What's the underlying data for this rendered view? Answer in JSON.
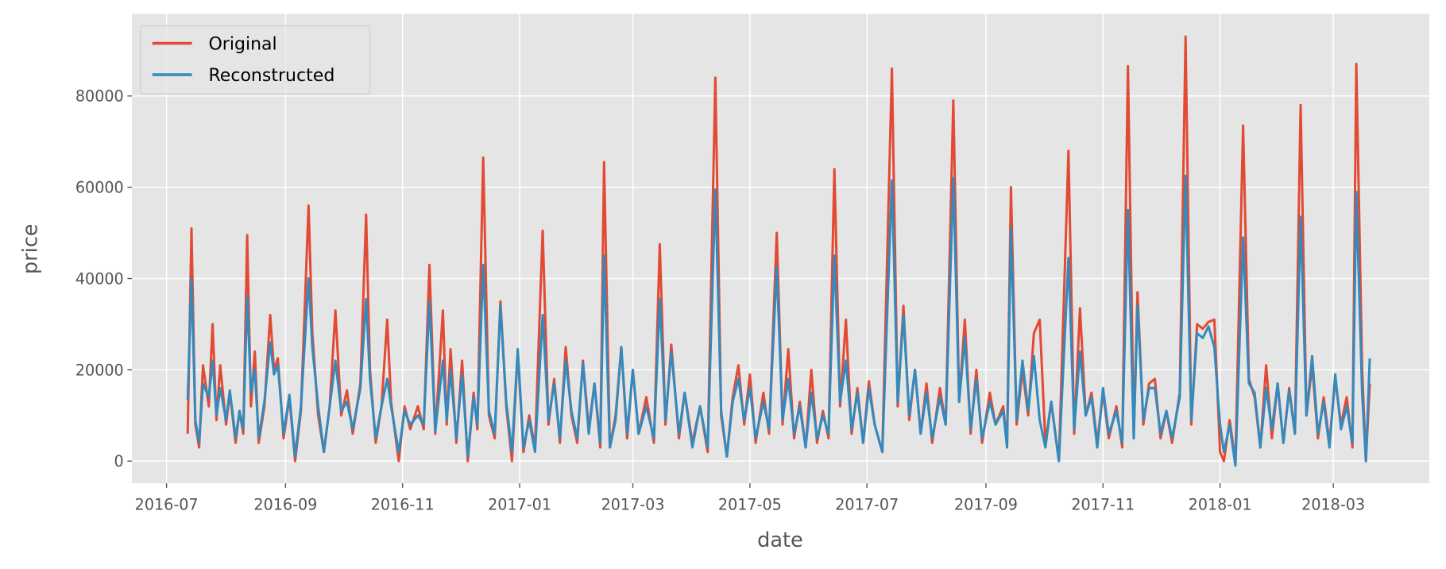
{
  "chart_data": {
    "type": "line",
    "title": "",
    "xlabel": "date",
    "ylabel": "price",
    "xlim": [
      "2016-06-13",
      "2018-04-20"
    ],
    "ylim": [
      -4850,
      98000
    ],
    "grid": true,
    "legend_position": "top-left",
    "x_ticks": [
      "2016-07",
      "2016-09",
      "2016-11",
      "2017-01",
      "2017-03",
      "2017-05",
      "2017-07",
      "2017-09",
      "2017-11",
      "2018-01",
      "2018-03"
    ],
    "y_ticks": [
      0,
      20000,
      40000,
      60000,
      80000
    ],
    "y_tick_labels": [
      "0",
      "20000",
      "40000",
      "60000",
      "80000"
    ],
    "x": [
      "2016-07-12",
      "2016-07-14",
      "2016-07-16",
      "2016-07-18",
      "2016-07-20",
      "2016-07-23",
      "2016-07-25",
      "2016-07-27",
      "2016-07-29",
      "2016-08-01",
      "2016-08-03",
      "2016-08-06",
      "2016-08-08",
      "2016-08-10",
      "2016-08-12",
      "2016-08-14",
      "2016-08-16",
      "2016-08-18",
      "2016-08-21",
      "2016-08-24",
      "2016-08-26",
      "2016-08-28",
      "2016-08-31",
      "2016-09-03",
      "2016-09-06",
      "2016-09-09",
      "2016-09-13",
      "2016-09-15",
      "2016-09-18",
      "2016-09-21",
      "2016-09-24",
      "2016-09-27",
      "2016-09-30",
      "2016-10-03",
      "2016-10-06",
      "2016-10-10",
      "2016-10-13",
      "2016-10-15",
      "2016-10-18",
      "2016-10-21",
      "2016-10-24",
      "2016-10-26",
      "2016-10-30",
      "2016-11-02",
      "2016-11-05",
      "2016-11-09",
      "2016-11-12",
      "2016-11-15",
      "2016-11-18",
      "2016-11-22",
      "2016-11-24",
      "2016-11-26",
      "2016-11-29",
      "2016-12-02",
      "2016-12-05",
      "2016-12-08",
      "2016-12-10",
      "2016-12-13",
      "2016-12-16",
      "2016-12-19",
      "2016-12-22",
      "2016-12-25",
      "2016-12-28",
      "2016-12-31",
      "2017-01-03",
      "2017-01-06",
      "2017-01-09",
      "2017-01-13",
      "2017-01-16",
      "2017-01-19",
      "2017-01-22",
      "2017-01-25",
      "2017-01-28",
      "2017-01-31",
      "2017-02-03",
      "2017-02-06",
      "2017-02-09",
      "2017-02-12",
      "2017-02-14",
      "2017-02-17",
      "2017-02-20",
      "2017-02-23",
      "2017-02-26",
      "2017-03-01",
      "2017-03-04",
      "2017-03-08",
      "2017-03-12",
      "2017-03-15",
      "2017-03-18",
      "2017-03-21",
      "2017-03-25",
      "2017-03-28",
      "2017-04-01",
      "2017-04-05",
      "2017-04-09",
      "2017-04-13",
      "2017-04-16",
      "2017-04-19",
      "2017-04-22",
      "2017-04-25",
      "2017-04-28",
      "2017-05-01",
      "2017-05-04",
      "2017-05-08",
      "2017-05-11",
      "2017-05-15",
      "2017-05-18",
      "2017-05-21",
      "2017-05-24",
      "2017-05-27",
      "2017-05-30",
      "2017-06-02",
      "2017-06-05",
      "2017-06-08",
      "2017-06-11",
      "2017-06-14",
      "2017-06-17",
      "2017-06-20",
      "2017-06-23",
      "2017-06-26",
      "2017-06-29",
      "2017-07-02",
      "2017-07-05",
      "2017-07-09",
      "2017-07-14",
      "2017-07-17",
      "2017-07-20",
      "2017-07-23",
      "2017-07-26",
      "2017-07-29",
      "2017-08-01",
      "2017-08-04",
      "2017-08-08",
      "2017-08-11",
      "2017-08-15",
      "2017-08-18",
      "2017-08-21",
      "2017-08-24",
      "2017-08-27",
      "2017-08-30",
      "2017-09-03",
      "2017-09-06",
      "2017-09-10",
      "2017-09-12",
      "2017-09-14",
      "2017-09-17",
      "2017-09-20",
      "2017-09-23",
      "2017-09-26",
      "2017-09-29",
      "2017-10-02",
      "2017-10-05",
      "2017-10-09",
      "2017-10-14",
      "2017-10-17",
      "2017-10-20",
      "2017-10-23",
      "2017-10-26",
      "2017-10-29",
      "2017-11-01",
      "2017-11-04",
      "2017-11-08",
      "2017-11-11",
      "2017-11-14",
      "2017-11-17",
      "2017-11-19",
      "2017-11-22",
      "2017-11-25",
      "2017-11-28",
      "2017-12-01",
      "2017-12-04",
      "2017-12-07",
      "2017-12-11",
      "2017-12-14",
      "2017-12-17",
      "2017-12-20",
      "2017-12-23",
      "2017-12-26",
      "2017-12-29",
      "2018-01-01",
      "2018-01-03",
      "2018-01-06",
      "2018-01-09",
      "2018-01-13",
      "2018-01-16",
      "2018-01-19",
      "2018-01-22",
      "2018-01-25",
      "2018-01-28",
      "2018-01-31",
      "2018-02-03",
      "2018-02-06",
      "2018-02-09",
      "2018-02-12",
      "2018-02-15",
      "2018-02-18",
      "2018-02-21",
      "2018-02-24",
      "2018-02-27",
      "2018-03-02",
      "2018-03-05",
      "2018-03-08",
      "2018-03-11",
      "2018-03-13",
      "2018-03-16",
      "2018-03-18",
      "2018-03-20"
    ],
    "series": [
      {
        "name": "Original",
        "color": "#E24A33",
        "values": [
          6000,
          51000,
          8000,
          3000,
          21000,
          12000,
          30000,
          9000,
          21000,
          8000,
          15000,
          4000,
          11000,
          6000,
          49500,
          12000,
          24000,
          4000,
          12000,
          32000,
          20000,
          22500,
          5000,
          14000,
          0,
          11000,
          56000,
          28000,
          10000,
          2000,
          12000,
          33000,
          10000,
          15500,
          6000,
          17000,
          54000,
          20000,
          4000,
          12000,
          31000,
          13000,
          0,
          12000,
          7000,
          12000,
          7000,
          43000,
          6000,
          33000,
          8000,
          24500,
          4000,
          22000,
          0,
          15000,
          7000,
          66500,
          10000,
          5000,
          35000,
          12000,
          0,
          24000,
          2000,
          10000,
          3000,
          50500,
          8000,
          18000,
          4000,
          25000,
          10000,
          4000,
          22000,
          7000,
          17000,
          3000,
          65500,
          3000,
          10000,
          25000,
          5000,
          20000,
          6000,
          14000,
          4000,
          47500,
          8000,
          25500,
          5000,
          15000,
          4000,
          12000,
          2000,
          84000,
          10000,
          1000,
          14000,
          21000,
          8000,
          19000,
          4000,
          15000,
          6000,
          50000,
          8000,
          24500,
          5000,
          13000,
          3000,
          20000,
          4000,
          11000,
          5000,
          64000,
          12000,
          31000,
          6000,
          16000,
          4000,
          17500,
          8000,
          2000,
          86000,
          12000,
          34000,
          9000,
          20000,
          6000,
          17000,
          4000,
          16000,
          8000,
          79000,
          13000,
          31000,
          6000,
          20000,
          4000,
          15000,
          8000,
          12000,
          4000,
          60000,
          8000,
          20000,
          10000,
          28000,
          31000,
          4000,
          13000,
          0,
          68000,
          6000,
          33500,
          10000,
          15000,
          4000,
          15000,
          5000,
          12000,
          3000,
          86500,
          6000,
          37000,
          8000,
          17000,
          18000,
          5000,
          11000,
          4000,
          15000,
          93000,
          8000,
          30000,
          29000,
          30500,
          31000,
          2000,
          0,
          9000,
          0,
          73500,
          18000,
          14000,
          3000,
          21000,
          5000,
          17000,
          4000,
          16000,
          6000,
          78000,
          10000,
          21000,
          5000,
          14000,
          4000,
          18000,
          8000,
          14000,
          3000,
          87000,
          20000,
          0,
          17000
        ]
      },
      {
        "name": "Reconstructed",
        "color": "#348ABD",
        "values": [
          13500,
          40000,
          9000,
          4000,
          17000,
          14000,
          22000,
          10000,
          16000,
          9000,
          15500,
          5000,
          11000,
          7000,
          36000,
          15000,
          20000,
          5000,
          13000,
          26000,
          19000,
          21000,
          6000,
          14500,
          1000,
          12000,
          40000,
          25000,
          12000,
          2000,
          12000,
          22000,
          11000,
          13000,
          7000,
          16000,
          35500,
          18000,
          5000,
          12000,
          18000,
          12000,
          2000,
          11000,
          8000,
          10000,
          8000,
          35000,
          6500,
          22000,
          9000,
          20000,
          5000,
          19000,
          1000,
          14000,
          8000,
          43000,
          11000,
          6000,
          34000,
          13000,
          2000,
          24500,
          3000,
          9000,
          2000,
          32000,
          9000,
          17000,
          5000,
          22000,
          11000,
          5000,
          21500,
          6000,
          17000,
          4000,
          45000,
          3000,
          9000,
          25000,
          6000,
          20000,
          6000,
          12000,
          5000,
          35500,
          9000,
          24000,
          6000,
          15000,
          3000,
          12000,
          3000,
          59500,
          11000,
          1000,
          13000,
          18000,
          9000,
          16000,
          5000,
          13000,
          7000,
          42500,
          9000,
          18000,
          6000,
          12000,
          3000,
          15000,
          5000,
          10000,
          6000,
          45000,
          13000,
          22000,
          7000,
          15000,
          4000,
          16000,
          8000,
          2000,
          61500,
          13000,
          32000,
          10000,
          20000,
          6000,
          15000,
          5000,
          14000,
          8000,
          62000,
          13000,
          27000,
          7000,
          18000,
          5000,
          13000,
          8000,
          11000,
          3000,
          51000,
          9000,
          22000,
          11000,
          23000,
          9000,
          3000,
          13000,
          0,
          44500,
          7000,
          24000,
          10000,
          14000,
          3000,
          16000,
          6000,
          11000,
          4000,
          55000,
          5000,
          34000,
          9000,
          16000,
          16000,
          6000,
          11000,
          5000,
          14000,
          62500,
          9000,
          28000,
          27000,
          29500,
          25000,
          8000,
          2000,
          8000,
          -1000,
          49000,
          17000,
          15000,
          3000,
          16000,
          7000,
          17000,
          4000,
          15500,
          6000,
          53500,
          10000,
          23000,
          6000,
          13000,
          3000,
          19000,
          7000,
          12000,
          4000,
          59000,
          15000,
          0,
          22500
        ]
      }
    ]
  }
}
